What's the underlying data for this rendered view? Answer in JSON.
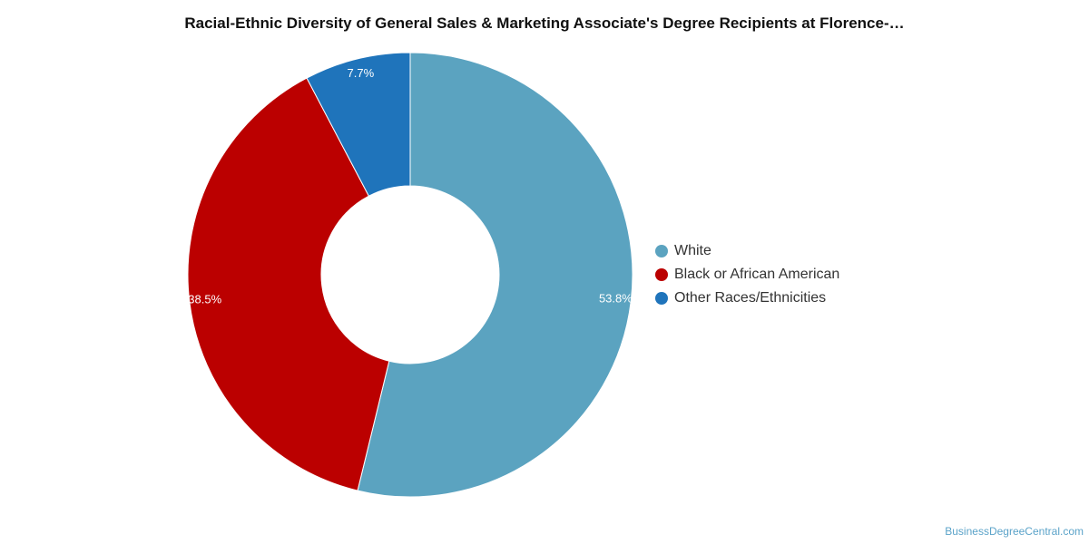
{
  "chart_data": {
    "type": "pie",
    "title": "Racial-Ethnic Diversity of General Sales & Marketing Associate's Degree Recipients at Florence-…",
    "donut": true,
    "legend_position": "right",
    "slices": [
      {
        "label": "White",
        "value": 53.8,
        "value_label": "53.8%",
        "color": "#5ba3c0"
      },
      {
        "label": "Black or African American",
        "value": 38.5,
        "value_label": "38.5%",
        "color": "#bb0000"
      },
      {
        "label": "Other Races/Ethnicities",
        "value": 7.7,
        "value_label": "7.7%",
        "color": "#1f74bb"
      }
    ]
  },
  "credit": "BusinessDegreeCentral.com"
}
